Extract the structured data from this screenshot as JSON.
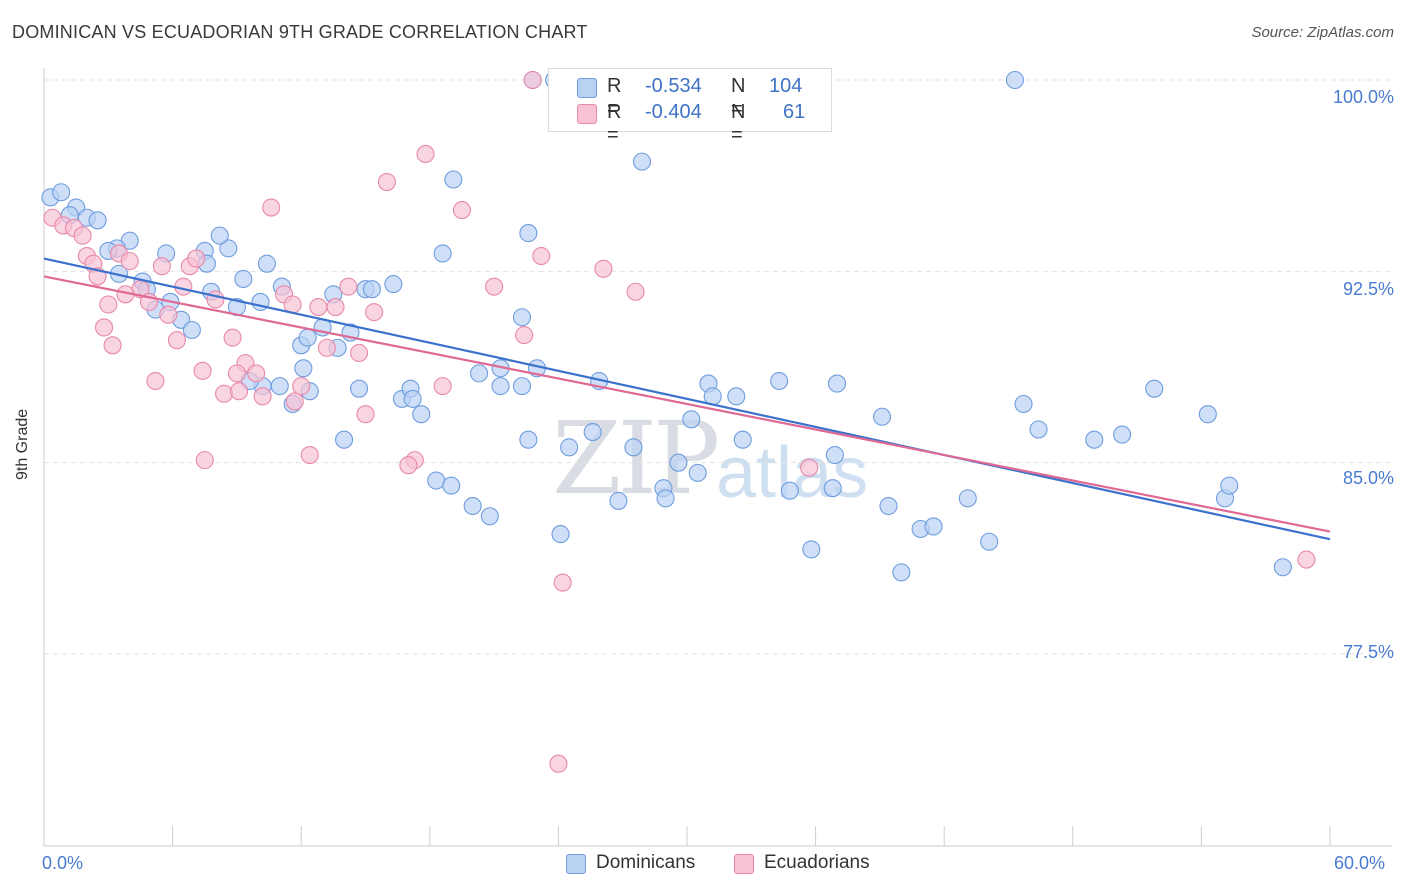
{
  "title": "DOMINICAN VS ECUADORIAN 9TH GRADE CORRELATION CHART",
  "source": "Source: ZipAtlas.com",
  "watermark": {
    "zip": "ZIP",
    "atlas": "atlas"
  },
  "legend": {
    "rows": [
      {
        "r_label": "R =",
        "r_value": "-0.534",
        "n_label": "N =",
        "n_value": "104"
      },
      {
        "r_label": "R =",
        "r_value": "-0.404",
        "n_label": "N =",
        "n_value": "61"
      }
    ]
  },
  "bottom_legend": {
    "dominicans": "Dominicans",
    "ecuadorians": "Ecuadorians"
  },
  "colors": {
    "dominicans_fill": "#b9d1f3",
    "dominicans_stroke": "#6f9ddf",
    "dominicans_line": "#3a72cc",
    "ecuadorians_fill": "#f6c2d4",
    "ecuadorians_stroke": "#e889a8",
    "ecuadorians_line": "#e06994",
    "axis_text": "#4a7bd0",
    "grid": "#e3e3e3"
  },
  "chart_data": {
    "type": "scatter",
    "title": "DOMINICAN VS ECUADORIAN 9TH GRADE CORRELATION CHART",
    "xlabel": "",
    "ylabel": "9th Grade",
    "xlim": [
      0,
      60
    ],
    "ylim": [
      70.5,
      101.5
    ],
    "x_tick_labels": [
      "0.0%",
      "60.0%"
    ],
    "y_ticks": [
      77.5,
      85.0,
      92.5,
      100.0
    ],
    "y_tick_labels": [
      "77.5%",
      "85.0%",
      "92.5%",
      "100.0%"
    ],
    "grid": true,
    "legend_position": "top-center",
    "series": [
      {
        "name": "Dominicans",
        "r": -0.534,
        "n": 104,
        "trend": {
          "x": [
            0,
            60
          ],
          "y": [
            93.0,
            82.0
          ]
        },
        "points": [
          [
            0.3,
            95.4
          ],
          [
            0.8,
            95.6
          ],
          [
            1.5,
            95.0
          ],
          [
            1.2,
            94.7
          ],
          [
            2.0,
            94.6
          ],
          [
            2.5,
            94.5
          ],
          [
            4.0,
            93.7
          ],
          [
            3.4,
            93.4
          ],
          [
            3.0,
            93.3
          ],
          [
            3.5,
            92.4
          ],
          [
            5.7,
            93.2
          ],
          [
            7.5,
            93.3
          ],
          [
            8.6,
            93.4
          ],
          [
            7.6,
            92.8
          ],
          [
            4.6,
            92.1
          ],
          [
            4.8,
            91.8
          ],
          [
            5.9,
            91.3
          ],
          [
            7.8,
            91.7
          ],
          [
            9.0,
            91.1
          ],
          [
            6.4,
            90.6
          ],
          [
            6.9,
            90.2
          ],
          [
            5.2,
            91.0
          ],
          [
            10.1,
            91.3
          ],
          [
            10.4,
            92.8
          ],
          [
            9.3,
            92.2
          ],
          [
            11.1,
            91.9
          ],
          [
            8.2,
            93.9
          ],
          [
            12.0,
            89.6
          ],
          [
            12.3,
            89.9
          ],
          [
            13.0,
            90.3
          ],
          [
            13.5,
            91.6
          ],
          [
            14.3,
            90.1
          ],
          [
            15.0,
            91.8
          ],
          [
            15.3,
            91.8
          ],
          [
            16.3,
            92.0
          ],
          [
            13.7,
            89.5
          ],
          [
            12.1,
            88.7
          ],
          [
            11.0,
            88.0
          ],
          [
            10.2,
            88.0
          ],
          [
            9.6,
            88.2
          ],
          [
            12.4,
            87.8
          ],
          [
            11.6,
            87.3
          ],
          [
            14.7,
            87.9
          ],
          [
            16.7,
            87.5
          ],
          [
            17.1,
            87.9
          ],
          [
            17.6,
            86.9
          ],
          [
            17.2,
            87.5
          ],
          [
            14.0,
            85.9
          ],
          [
            18.3,
            84.3
          ],
          [
            19.0,
            84.1
          ],
          [
            18.6,
            93.2
          ],
          [
            19.1,
            96.1
          ],
          [
            20.0,
            83.3
          ],
          [
            20.3,
            88.5
          ],
          [
            21.3,
            88.0
          ],
          [
            22.3,
            88.0
          ],
          [
            22.6,
            85.9
          ],
          [
            23.0,
            88.7
          ],
          [
            22.3,
            90.7
          ],
          [
            22.8,
            100.0
          ],
          [
            23.8,
            100.0
          ],
          [
            22.6,
            94.0
          ],
          [
            24.1,
            82.2
          ],
          [
            25.6,
            86.2
          ],
          [
            25.9,
            88.2
          ],
          [
            26.8,
            83.5
          ],
          [
            27.5,
            85.6
          ],
          [
            28.9,
            84.0
          ],
          [
            27.9,
            96.8
          ],
          [
            29.6,
            85.0
          ],
          [
            30.2,
            86.7
          ],
          [
            30.5,
            84.6
          ],
          [
            31.0,
            88.1
          ],
          [
            31.2,
            87.6
          ],
          [
            32.3,
            87.6
          ],
          [
            32.6,
            85.9
          ],
          [
            33.8,
            100.0
          ],
          [
            34.3,
            88.2
          ],
          [
            34.8,
            83.9
          ],
          [
            35.8,
            81.6
          ],
          [
            36.9,
            85.3
          ],
          [
            37.0,
            88.1
          ],
          [
            39.1,
            86.8
          ],
          [
            39.4,
            83.3
          ],
          [
            40.0,
            80.7
          ],
          [
            40.9,
            82.4
          ],
          [
            41.5,
            82.5
          ],
          [
            43.1,
            83.6
          ],
          [
            44.1,
            81.9
          ],
          [
            45.3,
            100.0
          ],
          [
            45.7,
            87.3
          ],
          [
            46.4,
            86.3
          ],
          [
            50.3,
            86.1
          ],
          [
            51.8,
            87.9
          ],
          [
            54.3,
            86.9
          ],
          [
            55.1,
            83.6
          ],
          [
            55.3,
            84.1
          ],
          [
            57.8,
            80.9
          ],
          [
            49.0,
            85.9
          ],
          [
            24.5,
            85.6
          ],
          [
            36.8,
            84.0
          ],
          [
            20.8,
            82.9
          ],
          [
            21.3,
            88.7
          ],
          [
            29.0,
            83.6
          ]
        ]
      },
      {
        "name": "Ecuadorians",
        "r": -0.404,
        "n": 61,
        "trend": {
          "x": [
            0,
            60
          ],
          "y": [
            92.3,
            82.3
          ]
        },
        "points": [
          [
            0.4,
            94.6
          ],
          [
            0.9,
            94.3
          ],
          [
            1.4,
            94.2
          ],
          [
            2.0,
            93.1
          ],
          [
            2.3,
            92.8
          ],
          [
            3.0,
            91.2
          ],
          [
            3.5,
            93.2
          ],
          [
            2.8,
            90.3
          ],
          [
            3.2,
            89.6
          ],
          [
            4.0,
            92.9
          ],
          [
            4.5,
            91.8
          ],
          [
            4.9,
            91.3
          ],
          [
            5.2,
            88.2
          ],
          [
            5.5,
            92.7
          ],
          [
            5.8,
            90.8
          ],
          [
            6.2,
            89.8
          ],
          [
            6.5,
            91.9
          ],
          [
            6.8,
            92.7
          ],
          [
            7.1,
            93.0
          ],
          [
            7.4,
            88.6
          ],
          [
            8.0,
            91.4
          ],
          [
            8.4,
            87.7
          ],
          [
            8.8,
            89.9
          ],
          [
            9.1,
            87.8
          ],
          [
            9.4,
            88.9
          ],
          [
            9.9,
            88.5
          ],
          [
            10.2,
            87.6
          ],
          [
            10.6,
            95.0
          ],
          [
            11.2,
            91.6
          ],
          [
            11.6,
            91.2
          ],
          [
            12.0,
            88.0
          ],
          [
            12.4,
            85.3
          ],
          [
            12.8,
            91.1
          ],
          [
            13.2,
            89.5
          ],
          [
            13.6,
            91.1
          ],
          [
            14.2,
            91.9
          ],
          [
            14.7,
            89.3
          ],
          [
            15.0,
            86.9
          ],
          [
            15.4,
            90.9
          ],
          [
            16.0,
            96.0
          ],
          [
            17.3,
            85.1
          ],
          [
            17.8,
            97.1
          ],
          [
            18.6,
            88.0
          ],
          [
            19.5,
            94.9
          ],
          [
            21.0,
            91.9
          ],
          [
            22.8,
            100.0
          ],
          [
            22.4,
            90.0
          ],
          [
            23.2,
            93.1
          ],
          [
            24.2,
            80.3
          ],
          [
            24.0,
            73.2
          ],
          [
            26.1,
            92.6
          ],
          [
            27.6,
            91.7
          ],
          [
            35.7,
            84.8
          ],
          [
            58.9,
            81.2
          ],
          [
            1.8,
            93.9
          ],
          [
            2.5,
            92.3
          ],
          [
            9.0,
            88.5
          ],
          [
            17.0,
            84.9
          ],
          [
            7.5,
            85.1
          ],
          [
            11.7,
            87.4
          ],
          [
            3.8,
            91.6
          ]
        ]
      }
    ]
  }
}
